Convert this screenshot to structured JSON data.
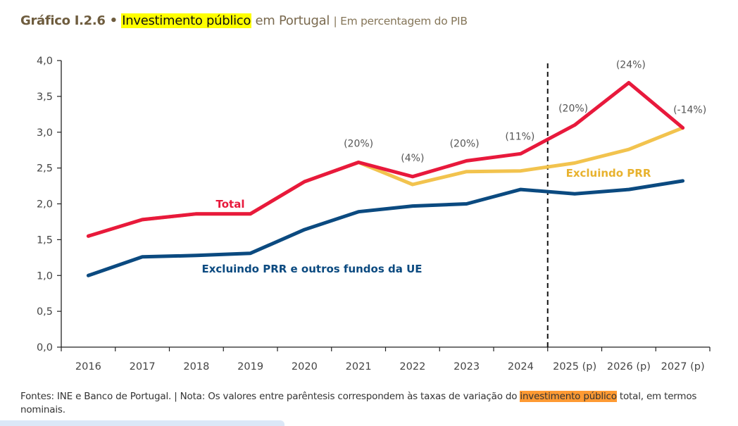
{
  "header": {
    "chart_id": "Gráfico I.2.6 •",
    "highlight": "Investimento público",
    "title_rest": "em Portugal",
    "subtitle": "| Em percentagem do PIB",
    "highlight_color": "#ffff00"
  },
  "footer": {
    "text_before": "Fontes: INE e Banco de Portugal. | Nota: Os valores entre parêntesis correspondem às taxas de variação do ",
    "highlight": "investimento público",
    "text_after": " total, em termos nominais.",
    "highlight_color": "#ff9a33"
  },
  "chart_data": {
    "type": "line",
    "title": "Investimento público em Portugal",
    "ylabel": "Em percentagem do PIB",
    "xlabel": "",
    "ylim": [
      0,
      4.0
    ],
    "yticks": [
      "0,0",
      "0,5",
      "1,0",
      "1,5",
      "2,0",
      "2,5",
      "3,0",
      "3,5",
      "4,0"
    ],
    "ytick_values": [
      0,
      0.5,
      1.0,
      1.5,
      2.0,
      2.5,
      3.0,
      3.5,
      4.0
    ],
    "categories": [
      "2016",
      "2017",
      "2018",
      "2019",
      "2020",
      "2021",
      "2022",
      "2023",
      "2024",
      "2025 (p)",
      "2026 (p)",
      "2027 (p)"
    ],
    "projection_divider_after": "2024",
    "grid": false,
    "series": [
      {
        "name": "Excluindo PRR",
        "color": "#f2c34e",
        "values": [
          1.55,
          1.78,
          1.86,
          1.86,
          2.31,
          2.58,
          2.27,
          2.45,
          2.46,
          2.57,
          2.76,
          3.06
        ]
      },
      {
        "name": "Total",
        "color": "#e8193c",
        "values": [
          1.55,
          1.78,
          1.86,
          1.86,
          2.31,
          2.58,
          2.38,
          2.6,
          2.7,
          3.1,
          3.69,
          3.06
        ]
      },
      {
        "name": "Excluindo PRR e outros fundos da UE",
        "color": "#0b4a80",
        "values": [
          1.0,
          1.26,
          1.28,
          1.31,
          1.64,
          1.89,
          1.97,
          2.0,
          2.2,
          2.14,
          2.2,
          2.32
        ]
      }
    ],
    "annotations": [
      {
        "category": "2021",
        "series": "Total",
        "text": "(20%)"
      },
      {
        "category": "2022",
        "series": "Total",
        "text": "(4%)"
      },
      {
        "category": "2023",
        "series": "Total",
        "text": "(20%)"
      },
      {
        "category": "2024",
        "series": "Total",
        "text": "(11%)"
      },
      {
        "category": "2025 (p)",
        "series": "Total",
        "text": "(20%)"
      },
      {
        "category": "2026 (p)",
        "series": "Total",
        "text": "(24%)"
      },
      {
        "category": "2027 (p)",
        "series": "Total",
        "text": "(-14%)"
      }
    ],
    "series_labels": [
      {
        "text": "Total",
        "color": "#e8193c"
      },
      {
        "text": "Excluindo PRR",
        "color": "#e8b22e"
      },
      {
        "text": "Excluindo PRR e outros fundos da UE",
        "color": "#0b4a80"
      }
    ]
  }
}
